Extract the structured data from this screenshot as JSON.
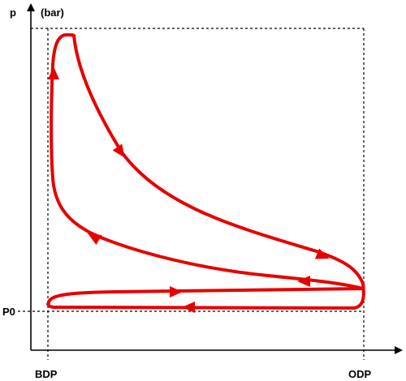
{
  "labels": {
    "y_axis_symbol": "p",
    "y_axis_unit": "(bar)",
    "p0": "P0",
    "bdp": "BDP",
    "odp": "ODP"
  },
  "colors": {
    "curve": "#e60000",
    "axis": "#000000",
    "guide": "#000000"
  }
}
